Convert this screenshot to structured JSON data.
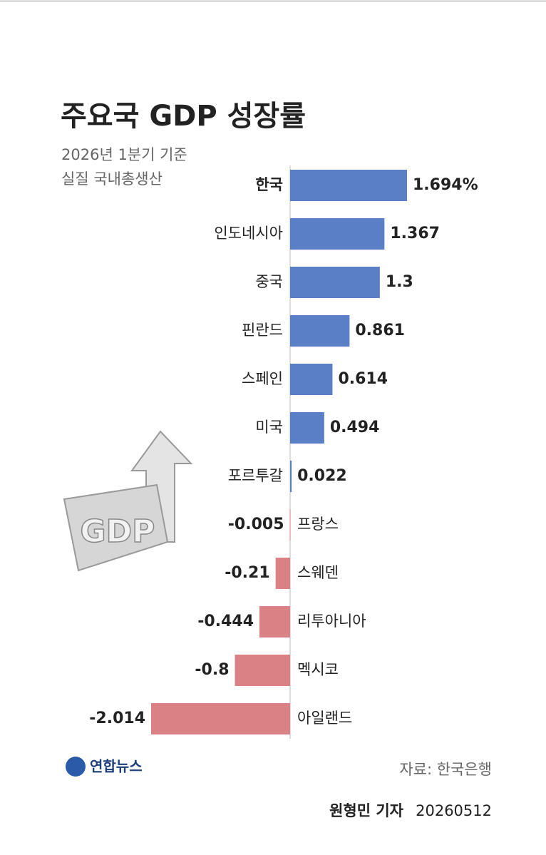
{
  "chart_data": {
    "type": "hbar",
    "title": "주요국 GDP 성장률",
    "subtitle": [
      "2026년 1분기 기준",
      "실질 국내총생산"
    ],
    "categories": [
      "한국",
      "인도네시아",
      "중국",
      "핀란드",
      "스페인",
      "미국",
      "포르투갈",
      "프랑스",
      "스웨덴",
      "리투아니아",
      "멕시코",
      "아일랜드"
    ],
    "values": [
      1.694,
      1.367,
      1.3,
      0.861,
      0.614,
      0.494,
      0.022,
      -0.005,
      -0.21,
      -0.444,
      -0.8,
      -2.014
    ],
    "value_labels": [
      "1.694%",
      "1.367",
      "1.3",
      "0.861",
      "0.614",
      "0.494",
      "0.022",
      "-0.005",
      "-0.21",
      "-0.444",
      "-0.8",
      "-2.014"
    ],
    "positive_color": "#5b7fc6",
    "negative_color": "#d98184",
    "icon_text": "GDP",
    "logo": "연합뉴스",
    "source": "자료: 한국은행",
    "byline_name": "원형민 기자",
    "byline_date": "20260512"
  }
}
